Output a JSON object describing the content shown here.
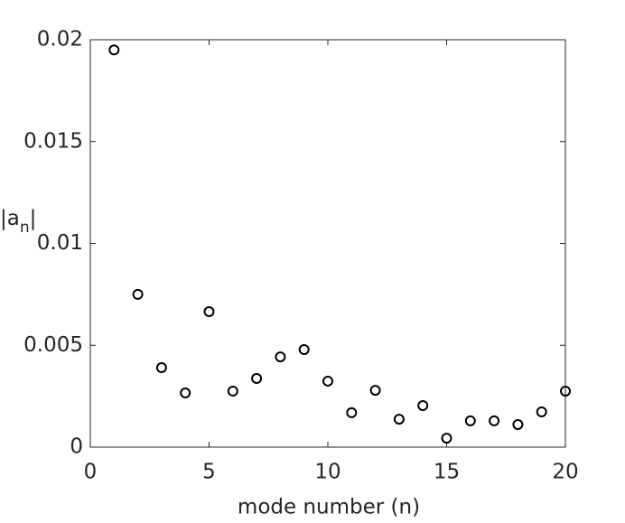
{
  "chart_data": {
    "type": "scatter",
    "xlabel": "mode number (n)",
    "ylabel": [
      "|a",
      "n",
      "|"
    ],
    "x": [
      1,
      2,
      3,
      4,
      5,
      6,
      7,
      8,
      9,
      10,
      11,
      12,
      13,
      14,
      15,
      16,
      17,
      18,
      19,
      20
    ],
    "values": [
      0.0195,
      0.0075,
      0.0039,
      0.00266,
      0.00665,
      0.00275,
      0.00337,
      0.00443,
      0.00479,
      0.00324,
      0.00169,
      0.00279,
      0.00137,
      0.00204,
      0.00044,
      0.00129,
      0.00129,
      0.00111,
      0.00173,
      0.00275
    ],
    "color": "#000000",
    "xlim": [
      0,
      20
    ],
    "xticks": [
      0,
      5,
      10,
      15,
      20
    ],
    "ylim": [
      0,
      0.02
    ],
    "yticks": [
      0,
      0.005,
      0.01,
      0.015,
      0.02
    ]
  }
}
